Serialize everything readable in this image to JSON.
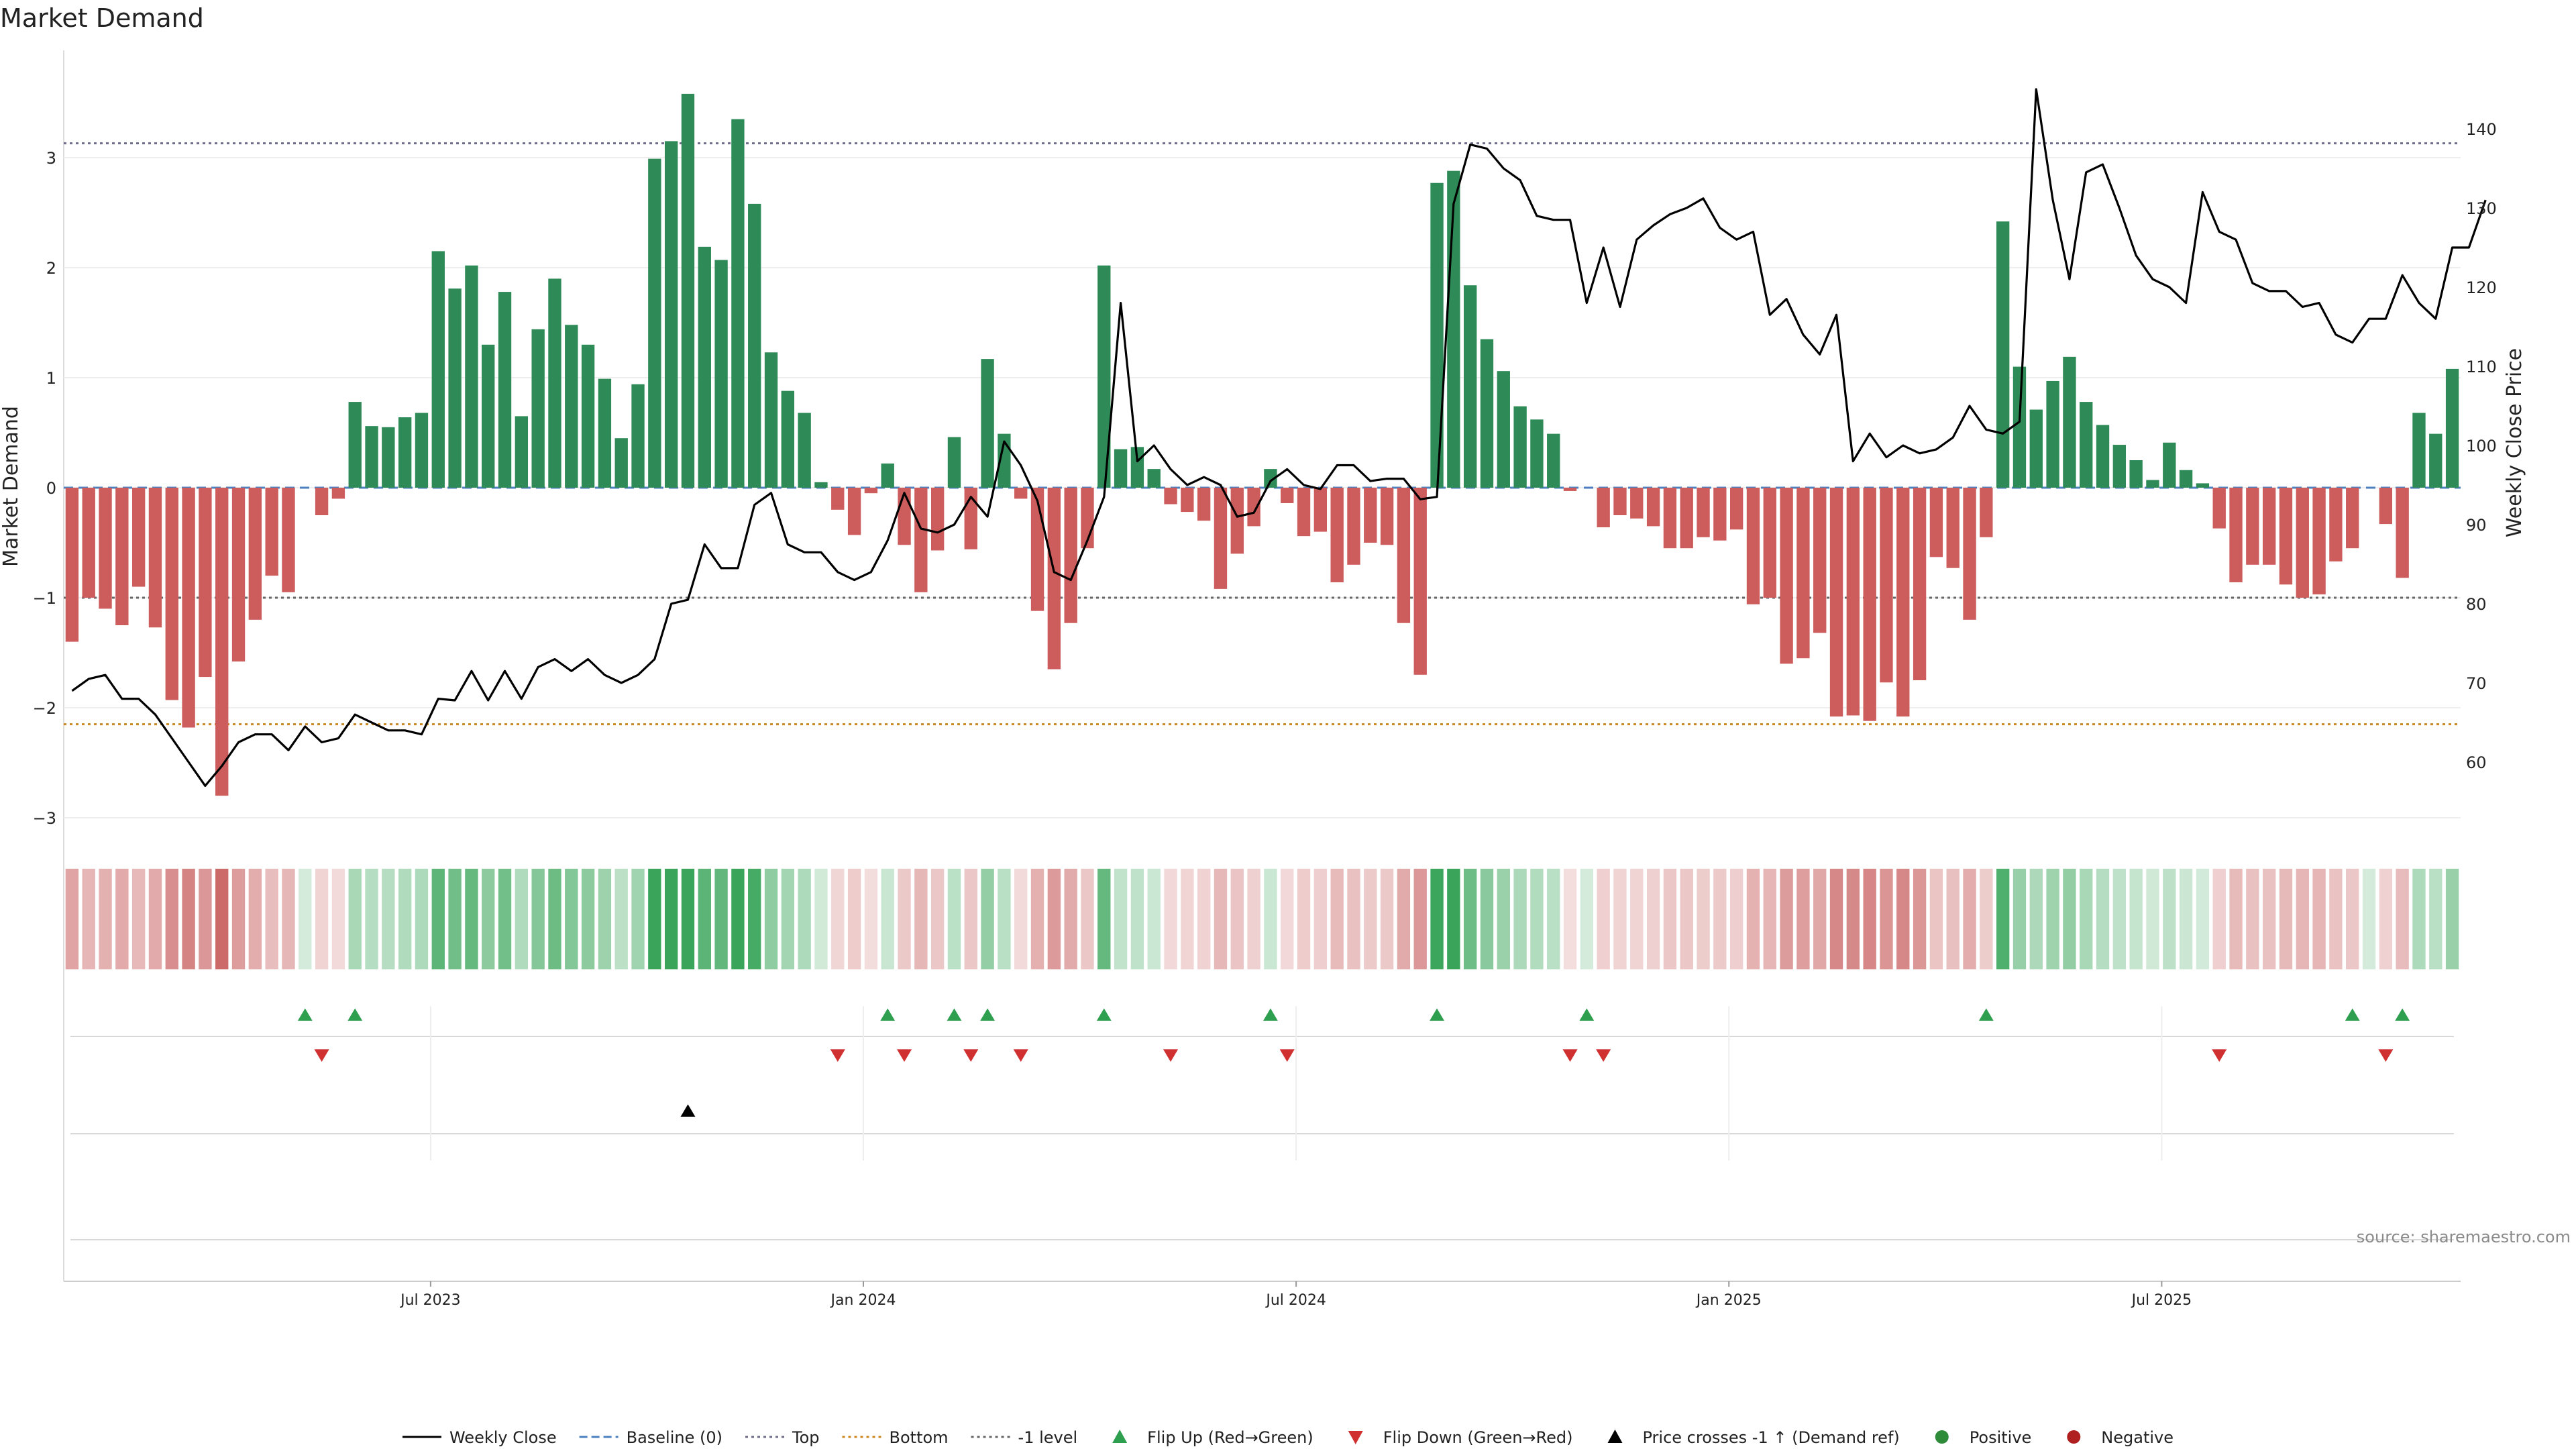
{
  "chart_data": {
    "type": "bar",
    "title": "Market Demand",
    "ylabel": "Market Demand",
    "y2label": "Weekly Close Price",
    "ylim": [
      -3.3,
      4.0
    ],
    "y2lim": [
      50,
      148
    ],
    "yticks": [
      "−3",
      "−2",
      "−1",
      "0",
      "1",
      "2",
      "3"
    ],
    "y2ticks": [
      "60",
      "70",
      "80",
      "90",
      "100",
      "110",
      "120",
      "130",
      "140"
    ],
    "xticks": [
      "Jul 2023",
      "Jan 2024",
      "Jul 2024",
      "Jan 2025",
      "Jul 2025"
    ],
    "reference_lines": {
      "top": 3.13,
      "bottom": -2.15,
      "minus_one": -1.0,
      "baseline": 0
    },
    "demand": [
      -1.4,
      -1.0,
      -1.1,
      -1.25,
      -0.9,
      -1.27,
      -1.93,
      -2.18,
      -1.72,
      -2.8,
      -1.58,
      -1.2,
      -0.8,
      -0.95,
      0,
      -0.25,
      -0.1,
      0.78,
      0.56,
      0.55,
      0.64,
      0.68,
      2.15,
      1.81,
      2.02,
      1.3,
      1.78,
      0.65,
      1.44,
      1.9,
      1.48,
      1.3,
      0.99,
      0.45,
      0.94,
      2.99,
      3.15,
      3.58,
      2.19,
      2.07,
      3.35,
      2.58,
      1.23,
      0.88,
      0.68,
      0.05,
      -0.2,
      -0.43,
      -0.05,
      0.22,
      -0.52,
      -0.95,
      -0.57,
      0.46,
      -0.56,
      1.17,
      0.49,
      -0.1,
      -1.12,
      -1.65,
      -1.23,
      -0.55,
      2.02,
      0.35,
      0.37,
      0.17,
      -0.15,
      -0.22,
      -0.3,
      -0.92,
      -0.6,
      -0.35,
      0.17,
      -0.14,
      -0.44,
      -0.4,
      -0.86,
      -0.7,
      -0.5,
      -0.52,
      -1.23,
      -1.7,
      2.77,
      2.88,
      1.84,
      1.35,
      1.06,
      0.74,
      0.62,
      0.49,
      -0.03,
      0,
      -0.36,
      -0.25,
      -0.28,
      -0.35,
      -0.55,
      -0.55,
      -0.45,
      -0.48,
      -0.38,
      -1.06,
      -1.0,
      -1.6,
      -1.55,
      -1.32,
      -2.08,
      -2.07,
      -2.12,
      -1.77,
      -2.08,
      -1.75,
      -0.63,
      -0.73,
      -1.2,
      -0.45,
      2.42,
      1.1,
      0.71,
      0.97,
      1.19,
      0.78,
      0.57,
      0.39,
      0.25,
      0.07,
      0.41,
      0.16,
      0.04,
      -0.37,
      -0.86,
      -0.7,
      -0.7,
      -0.88,
      -1.0,
      -0.97,
      -0.67,
      -0.55,
      0,
      -0.33,
      -0.82,
      0.68,
      0.49,
      1.08
    ],
    "price": [
      69,
      70.5,
      71,
      68,
      68,
      66,
      63,
      60,
      57,
      59.5,
      62.5,
      63.5,
      63.5,
      61.5,
      64.5,
      62.5,
      63,
      66,
      65,
      64,
      64,
      63.5,
      68,
      67.8,
      71.5,
      67.8,
      71.5,
      68,
      72,
      73,
      71.5,
      73,
      71,
      70,
      71,
      73,
      80,
      80.5,
      87.5,
      84.5,
      84.5,
      92.5,
      94,
      87.5,
      86.5,
      86.5,
      84,
      83,
      84,
      88,
      94,
      89.5,
      89,
      90,
      93.5,
      91,
      100.5,
      97.5,
      93,
      84,
      83,
      88,
      93.5,
      118,
      98,
      100,
      97,
      95,
      96,
      95,
      91,
      91.5,
      95.5,
      97,
      95,
      94.5,
      97.5,
      97.5,
      95.5,
      95.8,
      95.8,
      93.2,
      93.5,
      130.5,
      138,
      137.5,
      135,
      133.5,
      129,
      128.5,
      128.5,
      118,
      125,
      117.5,
      126,
      127.8,
      129.2,
      130,
      131.2,
      127.5,
      126,
      127,
      116.5,
      118.5,
      114,
      111.5,
      116.5,
      98,
      101.5,
      98.5,
      100,
      99,
      99.5,
      101,
      105,
      102,
      101.5,
      103,
      145,
      131,
      121,
      134.5,
      135.5,
      130,
      124,
      121,
      120,
      118,
      132,
      127,
      126,
      120.5,
      119.5,
      119.5,
      117.5,
      118,
      114,
      113,
      116,
      116,
      121.5,
      118,
      116,
      125,
      125,
      131
    ]
  },
  "markers": {
    "flip_up": [
      14,
      17,
      49,
      53,
      55,
      62,
      72,
      82,
      91,
      115,
      137,
      140
    ],
    "flip_down": [
      15,
      46,
      50,
      54,
      57,
      66,
      73,
      90,
      92,
      129,
      139
    ],
    "price_cross": [
      37
    ]
  },
  "source": "source: sharemaestro.com",
  "legend": [
    {
      "label": "Weekly Close",
      "kind": "line",
      "color": "#000000"
    },
    {
      "label": "Baseline (0)",
      "kind": "dash",
      "color": "#4c80c0"
    },
    {
      "label": "Top",
      "kind": "dot",
      "color": "#6e6e8a"
    },
    {
      "label": "Bottom",
      "kind": "dot",
      "color": "#cc8822"
    },
    {
      "label": "-1 level",
      "kind": "dot",
      "color": "#666666"
    },
    {
      "label": "Flip Up (Red→Green)",
      "kind": "tri-up",
      "color": "#2e9e4f"
    },
    {
      "label": "Flip Down (Green→Red)",
      "kind": "tri-down",
      "color": "#d03030"
    },
    {
      "label": "Price crosses -1 ↑ (Demand ref)",
      "kind": "tri-up",
      "color": "#000000"
    },
    {
      "label": "Positive",
      "kind": "dot-circle",
      "color": "#2e8b3a"
    },
    {
      "label": "Negative",
      "kind": "dot-circle",
      "color": "#b02020"
    }
  ],
  "colors": {
    "positive": "#2e8b57",
    "negative": "#cd5c5c",
    "flip_up": "#2e9e4f",
    "flip_down": "#d03030"
  }
}
